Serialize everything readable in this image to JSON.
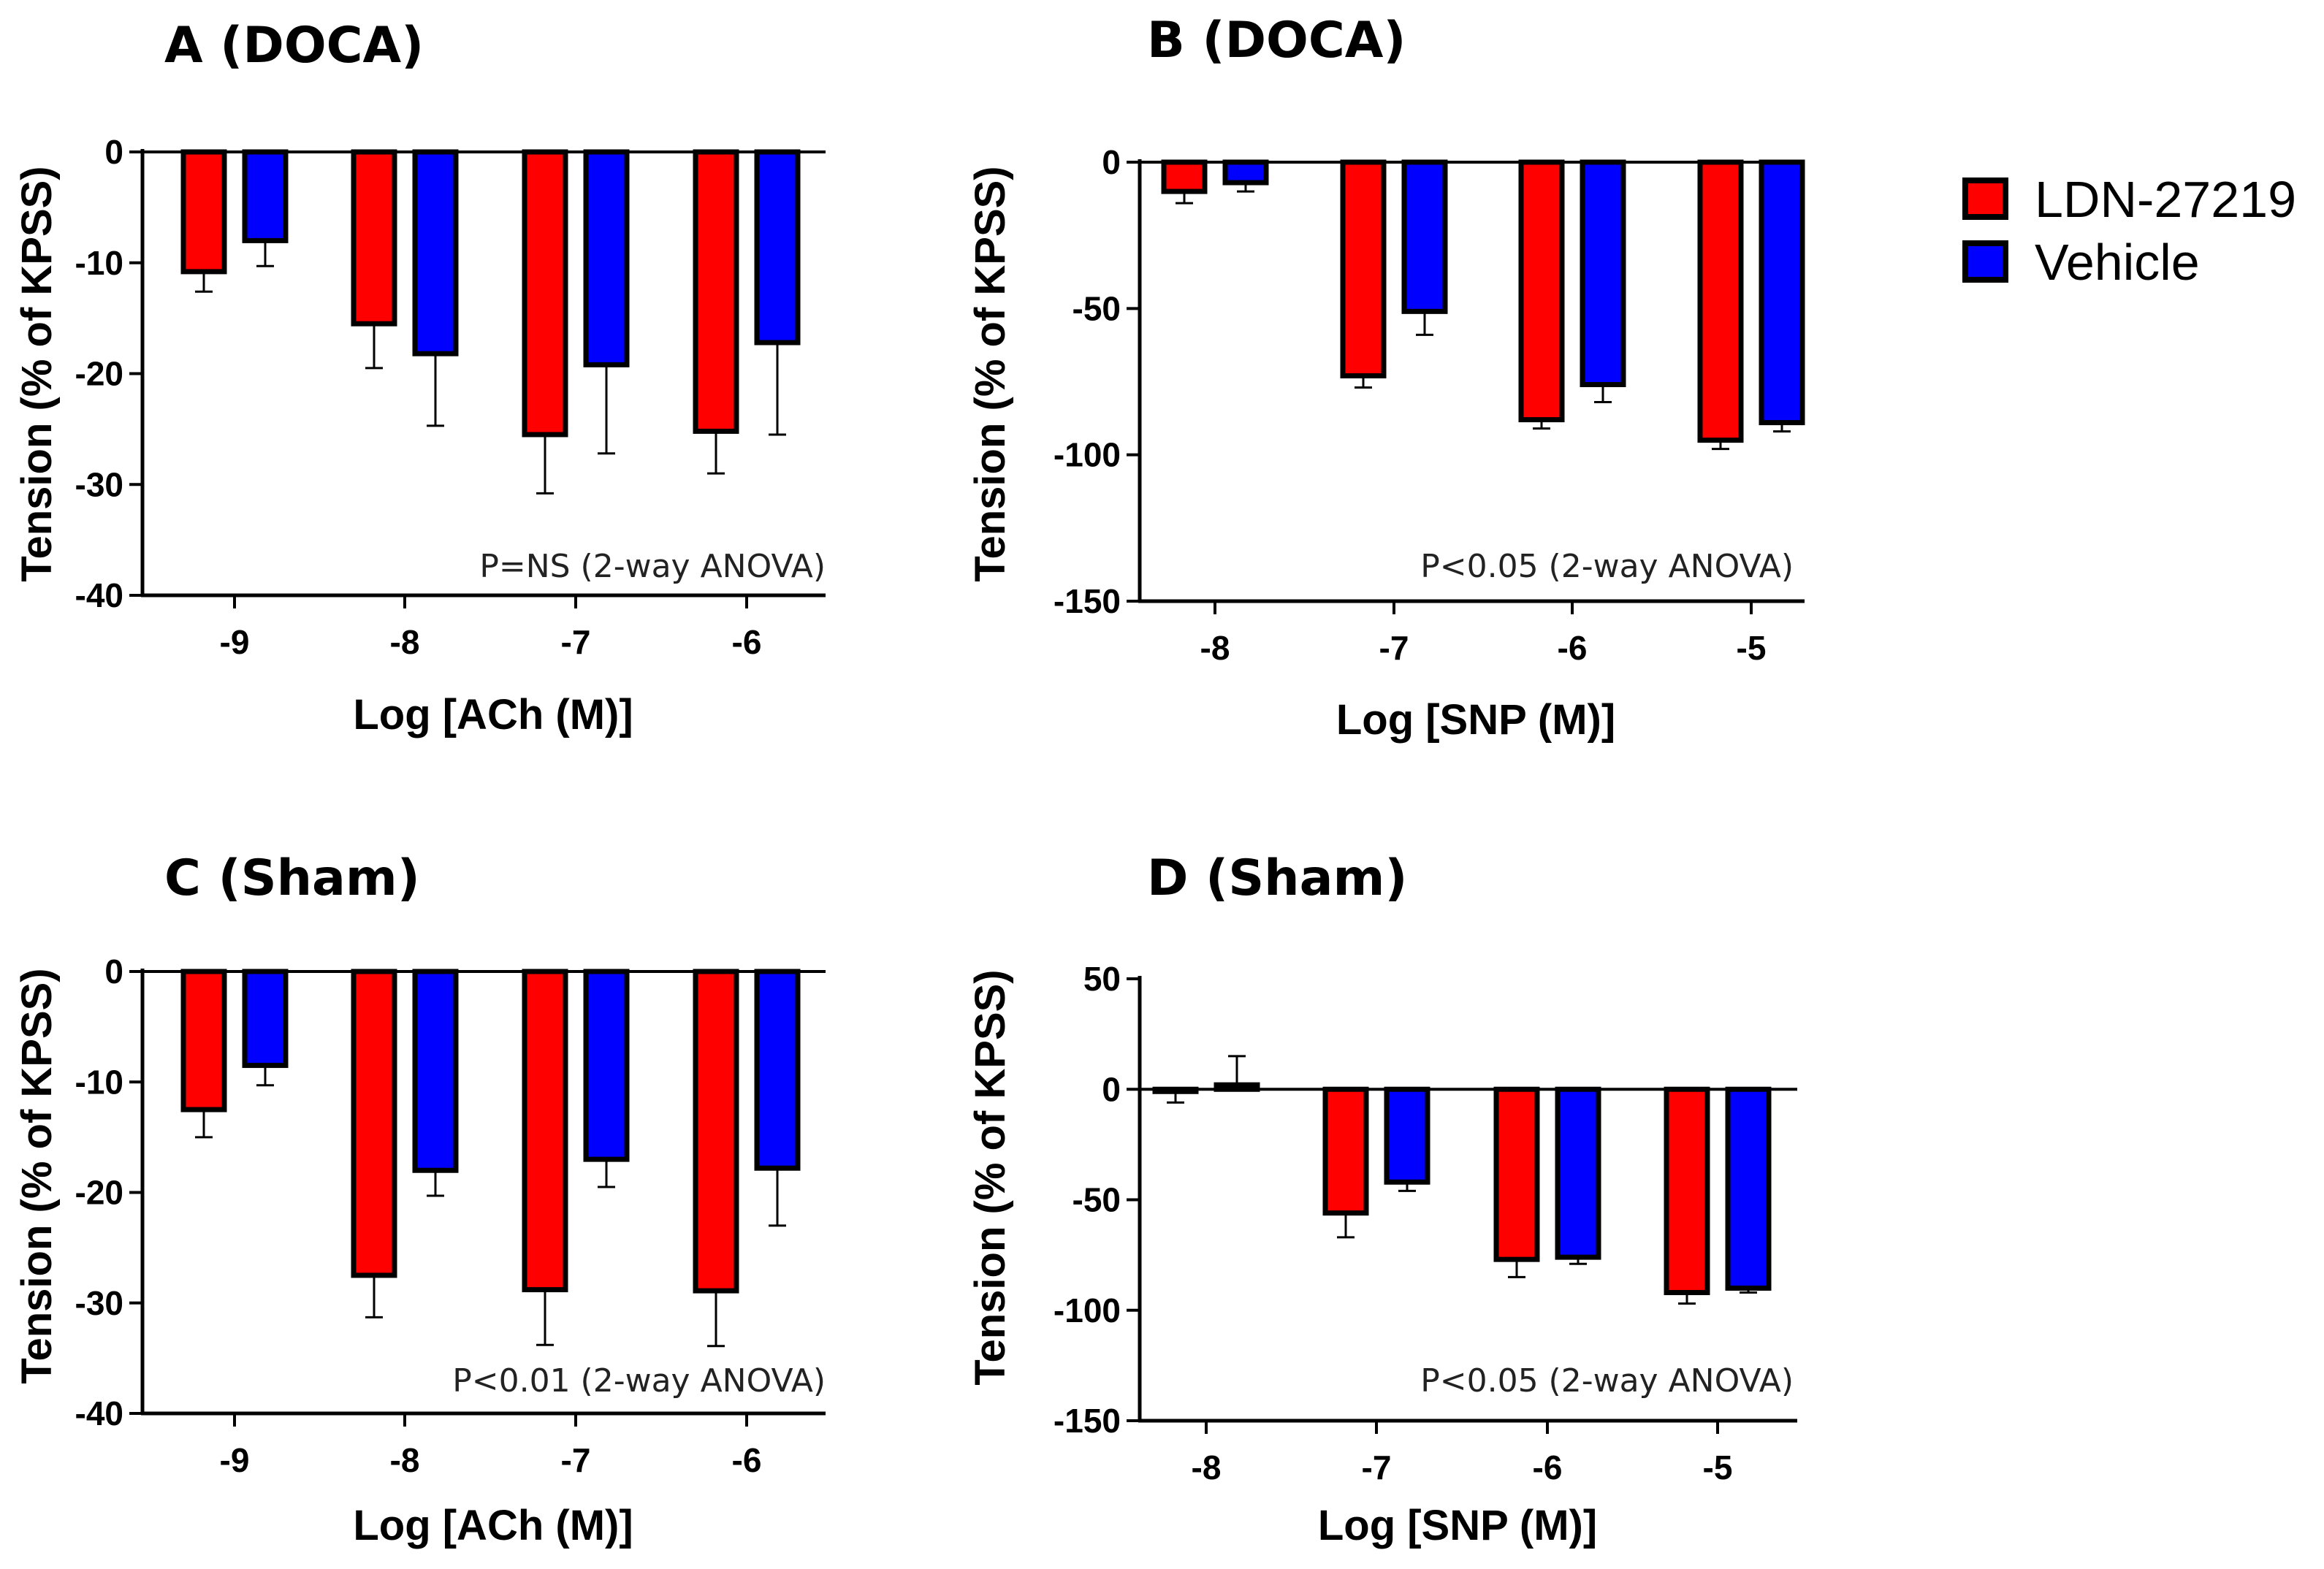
{
  "colors": {
    "ldn": "#ff0000",
    "vehicle": "#0000ff",
    "axis": "#000000"
  },
  "legend": [
    {
      "label": "LDN-27219",
      "color": "#ff0000"
    },
    {
      "label": "Vehicle",
      "color": "#0000ff"
    }
  ],
  "chart_data": [
    {
      "type": "bar",
      "title": "A (DOCA)",
      "xlabel": "Log [ACh (M)]",
      "ylabel": "Tension (% of  KPSS)",
      "categories": [
        "-9",
        "-8",
        "-7",
        "-6"
      ],
      "ylim": [
        -40,
        0
      ],
      "yticks": [
        0,
        -10,
        -20,
        -30,
        -40
      ],
      "annotation": "P=NS (2-way ANOVA)",
      "series": [
        {
          "name": "LDN-27219",
          "values": [
            -10.8,
            -15.5,
            -25.5,
            -25.2
          ],
          "errors": [
            1.8,
            4.0,
            5.3,
            3.8
          ]
        },
        {
          "name": "Vehicle",
          "values": [
            -8.0,
            -18.2,
            -19.2,
            -17.2
          ],
          "errors": [
            2.3,
            6.5,
            8.0,
            8.3
          ]
        }
      ]
    },
    {
      "type": "bar",
      "title": "B (DOCA)",
      "xlabel": "Log [SNP (M)]",
      "ylabel": "Tension (% of  KPSS)",
      "categories": [
        "-8",
        "-7",
        "-6",
        "-5"
      ],
      "ylim": [
        -150,
        0
      ],
      "yticks": [
        0,
        -50,
        -100,
        -150
      ],
      "annotation": "P<0.05 (2-way ANOVA)",
      "series": [
        {
          "name": "LDN-27219",
          "values": [
            -10,
            -73,
            -88,
            -95
          ],
          "errors": [
            4,
            4,
            3,
            3
          ]
        },
        {
          "name": "Vehicle",
          "values": [
            -7,
            -51,
            -76,
            -89
          ],
          "errors": [
            3,
            8,
            6,
            3
          ]
        }
      ]
    },
    {
      "type": "bar",
      "title": "C (Sham)",
      "xlabel": "Log [ACh (M)]",
      "ylabel": "Tension (% of  KPSS)",
      "categories": [
        "-9",
        "-8",
        "-7",
        "-6"
      ],
      "ylim": [
        -40,
        0
      ],
      "yticks": [
        0,
        -10,
        -20,
        -30,
        -40
      ],
      "annotation": "P<0.01 (2-way ANOVA)",
      "series": [
        {
          "name": "LDN-27219",
          "values": [
            -12.5,
            -27.5,
            -28.8,
            -28.9
          ],
          "errors": [
            2.5,
            3.8,
            5.0,
            5.0
          ]
        },
        {
          "name": "Vehicle",
          "values": [
            -8.5,
            -18.0,
            -17.0,
            -17.8
          ],
          "errors": [
            1.8,
            2.3,
            2.5,
            5.2
          ]
        }
      ]
    },
    {
      "type": "bar",
      "title": "D (Sham)",
      "xlabel": "Log [SNP (M)]",
      "ylabel": "Tension (% of  KPSS)",
      "categories": [
        "-8",
        "-7",
        "-6",
        "-5"
      ],
      "ylim": [
        -150,
        50
      ],
      "yticks": [
        50,
        0,
        -50,
        -100,
        -150
      ],
      "annotation": "P<0.05 (2-way ANOVA)",
      "series": [
        {
          "name": "LDN-27219",
          "values": [
            -1,
            -56,
            -77,
            -92
          ],
          "errors": [
            5,
            11,
            8,
            5
          ]
        },
        {
          "name": "Vehicle",
          "values": [
            2,
            -42,
            -76,
            -90
          ],
          "errors": [
            13,
            4,
            3,
            2
          ]
        }
      ]
    }
  ]
}
